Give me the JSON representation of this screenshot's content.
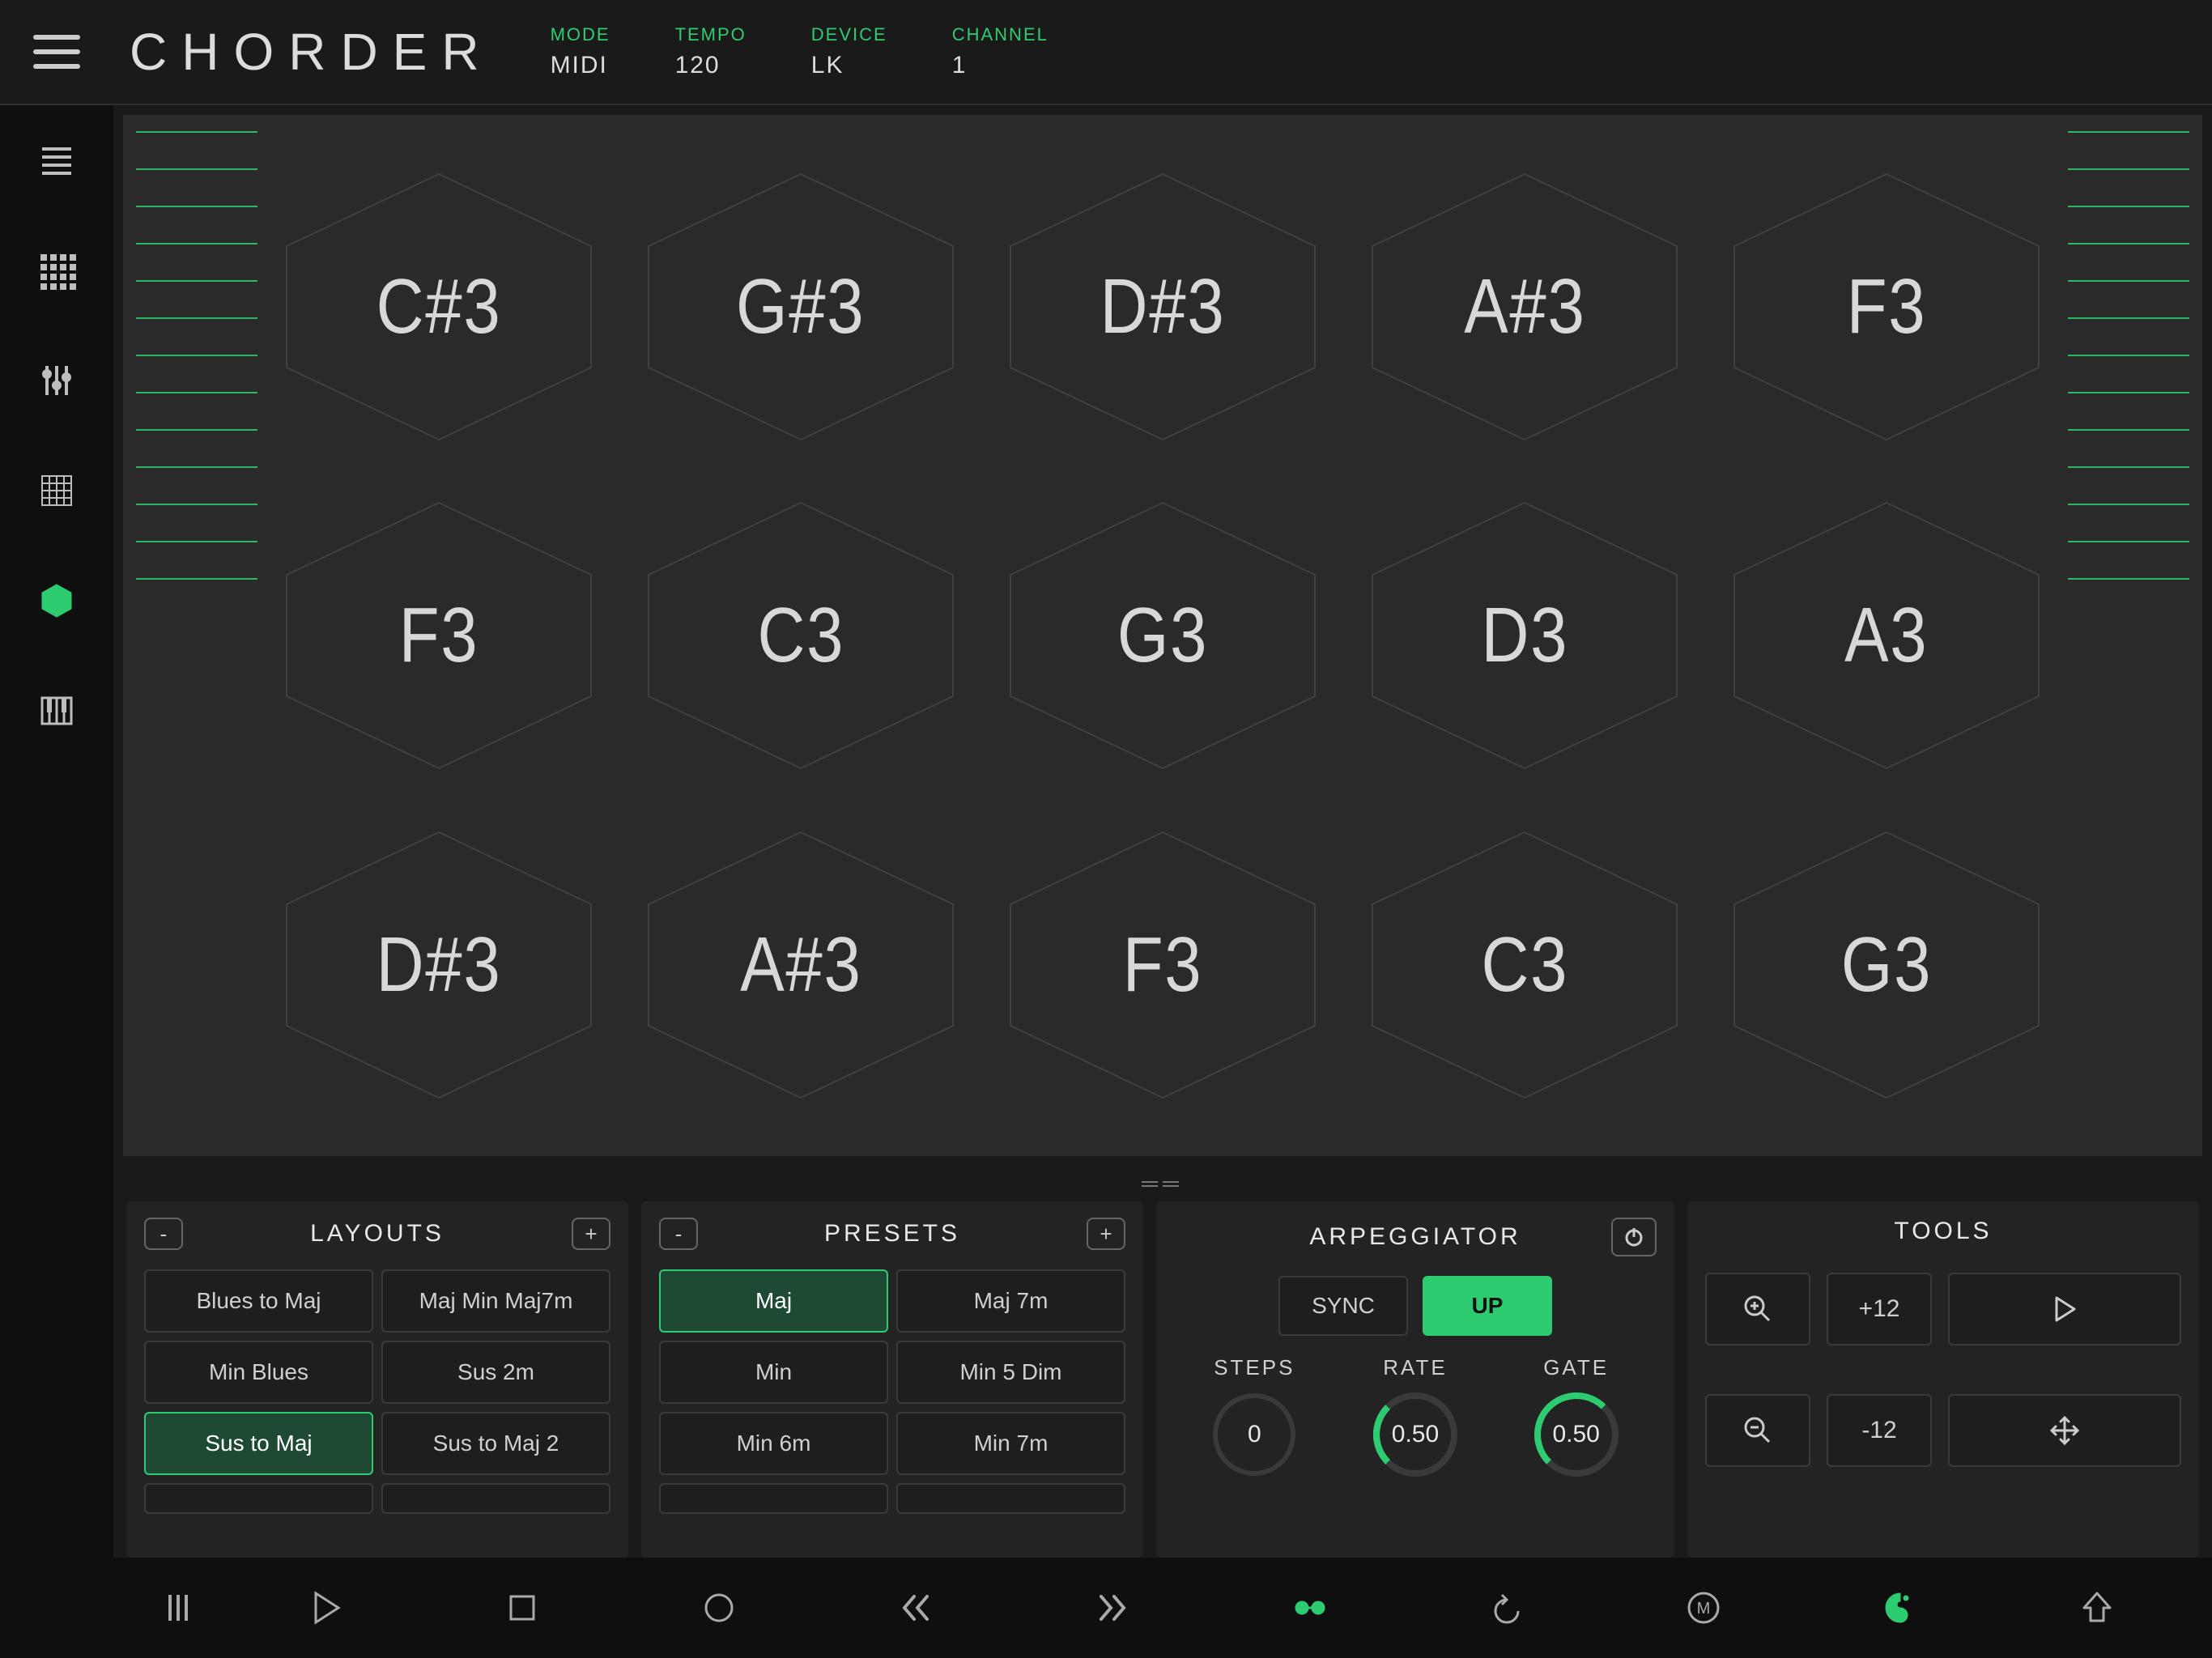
{
  "app_title": "CHORDER",
  "header": {
    "mode": {
      "label": "MODE",
      "value": "MIDI"
    },
    "tempo": {
      "label": "TEMPO",
      "value": "120"
    },
    "device": {
      "label": "DEVICE",
      "value": "LK"
    },
    "channel": {
      "label": "CHANNEL",
      "value": "1"
    }
  },
  "sidebar": {
    "items": [
      {
        "name": "list-icon"
      },
      {
        "name": "grid-icon"
      },
      {
        "name": "sliders-icon"
      },
      {
        "name": "matrix-icon"
      },
      {
        "name": "hexagon-icon",
        "active": true
      },
      {
        "name": "piano-icon"
      }
    ]
  },
  "pads": {
    "side_line_count": 13,
    "rows": [
      [
        "C#3",
        "G#3",
        "D#3",
        "A#3",
        "F3"
      ],
      [
        "F3",
        "C3",
        "G3",
        "D3",
        "A3"
      ],
      [
        "D#3",
        "A#3",
        "F3",
        "C3",
        "G3"
      ]
    ]
  },
  "layouts": {
    "title": "LAYOUTS",
    "minus": "-",
    "plus": "+",
    "items": [
      "Blues to Maj",
      "Maj Min Maj7m",
      "Min Blues",
      "Sus 2m",
      "Sus to Maj",
      "Sus to Maj 2"
    ],
    "active_index": 4
  },
  "presets": {
    "title": "PRESETS",
    "minus": "-",
    "plus": "+",
    "items": [
      "Maj",
      "Maj 7m",
      "Min",
      "Min 5 Dim",
      "Min 6m",
      "Min 7m"
    ],
    "active_index": 0
  },
  "arpeggiator": {
    "title": "ARPEGGIATOR",
    "sync_label": "SYNC",
    "direction_label": "UP",
    "steps": {
      "label": "STEPS",
      "value": "0"
    },
    "rate": {
      "label": "RATE",
      "value": "0.50"
    },
    "gate": {
      "label": "GATE",
      "value": "0.50"
    }
  },
  "tools": {
    "title": "TOOLS",
    "plus12": "+12",
    "minus12": "-12"
  },
  "colors": {
    "accent": "#2ecc71",
    "bg": "#1a1a1a",
    "panel": "#232323",
    "pad_bg": "#2a2a2a",
    "hex_stroke": "#404040",
    "text": "#d8d8d8"
  }
}
